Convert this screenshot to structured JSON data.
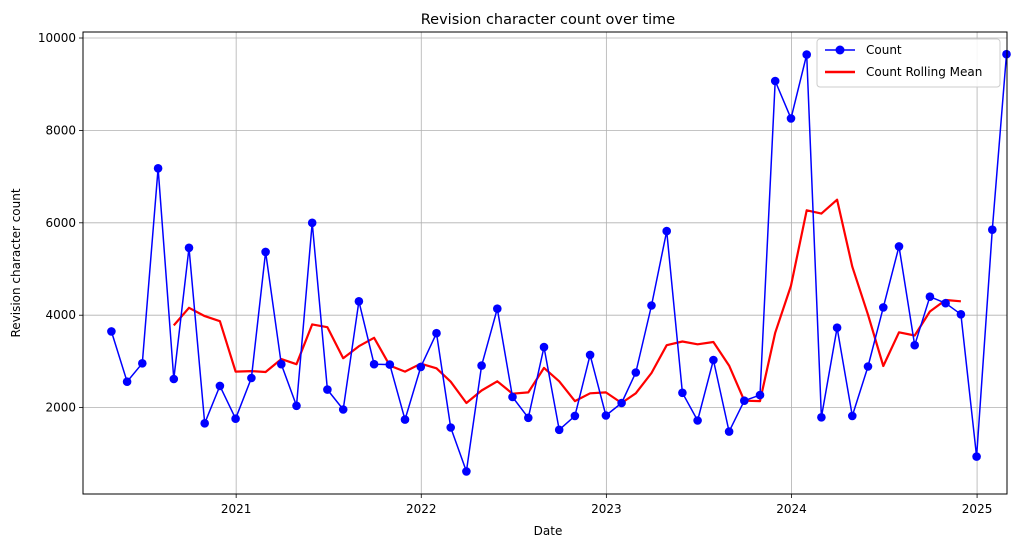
{
  "chart_data": {
    "type": "line",
    "title": "Revision character count over time",
    "xlabel": "Date",
    "ylabel": "Revision character count",
    "x_range": [
      "2020-03-05",
      "2025-03-01"
    ],
    "ylim": [
      130,
      10130
    ],
    "grid": true,
    "legend_position": "top-right",
    "x_ticks": [
      "2021-01-01",
      "2022-01-01",
      "2023-01-01",
      "2024-01-01",
      "2025-01-01"
    ],
    "x_tick_labels": [
      "2021",
      "2022",
      "2023",
      "2024",
      "2025"
    ],
    "y_ticks": [
      2000,
      4000,
      6000,
      8000,
      10000
    ],
    "y_tick_labels": [
      "2000",
      "4000",
      "6000",
      "8000",
      "10000"
    ],
    "colors": {
      "count": "#0000ff",
      "rolling": "#ff0000",
      "grid": "#b0b0b0"
    },
    "series": [
      {
        "name": "Count",
        "style": "line-with-markers",
        "points": [
          [
            "2020-04-30",
            3650
          ],
          [
            "2020-05-31",
            2560
          ],
          [
            "2020-06-30",
            2960
          ],
          [
            "2020-07-31",
            7180
          ],
          [
            "2020-08-31",
            2620
          ],
          [
            "2020-09-30",
            5460
          ],
          [
            "2020-10-31",
            1660
          ],
          [
            "2020-11-30",
            2470
          ],
          [
            "2020-12-31",
            1760
          ],
          [
            "2021-01-31",
            2640
          ],
          [
            "2021-02-28",
            5370
          ],
          [
            "2021-03-31",
            2940
          ],
          [
            "2021-04-30",
            2040
          ],
          [
            "2021-05-31",
            6000
          ],
          [
            "2021-06-30",
            2390
          ],
          [
            "2021-07-31",
            1960
          ],
          [
            "2021-08-31",
            4300
          ],
          [
            "2021-09-30",
            2940
          ],
          [
            "2021-10-31",
            2930
          ],
          [
            "2021-11-30",
            1740
          ],
          [
            "2021-12-31",
            2880
          ],
          [
            "2022-01-31",
            3610
          ],
          [
            "2022-02-28",
            1570
          ],
          [
            "2022-03-31",
            620
          ],
          [
            "2022-04-30",
            2910
          ],
          [
            "2022-05-31",
            4140
          ],
          [
            "2022-06-30",
            2230
          ],
          [
            "2022-07-31",
            1780
          ],
          [
            "2022-08-31",
            3310
          ],
          [
            "2022-09-30",
            1520
          ],
          [
            "2022-10-31",
            1820
          ],
          [
            "2022-11-30",
            3140
          ],
          [
            "2022-12-31",
            1830
          ],
          [
            "2023-01-31",
            2100
          ],
          [
            "2023-02-28",
            2760
          ],
          [
            "2023-03-31",
            4210
          ],
          [
            "2023-04-30",
            5820
          ],
          [
            "2023-05-31",
            2320
          ],
          [
            "2023-06-30",
            1720
          ],
          [
            "2023-07-31",
            3030
          ],
          [
            "2023-08-31",
            1480
          ],
          [
            "2023-09-30",
            2150
          ],
          [
            "2023-10-31",
            2270
          ],
          [
            "2023-11-30",
            9070
          ],
          [
            "2023-12-31",
            8260
          ],
          [
            "2024-01-31",
            9640
          ],
          [
            "2024-02-29",
            1790
          ],
          [
            "2024-03-31",
            3730
          ],
          [
            "2024-04-30",
            1820
          ],
          [
            "2024-05-31",
            2890
          ],
          [
            "2024-06-30",
            4170
          ],
          [
            "2024-07-31",
            5490
          ],
          [
            "2024-08-31",
            3350
          ],
          [
            "2024-09-30",
            4400
          ],
          [
            "2024-10-31",
            4260
          ],
          [
            "2024-11-30",
            4020
          ],
          [
            "2024-12-31",
            940
          ],
          [
            "2025-01-31",
            5850
          ],
          [
            "2025-02-28",
            9650
          ]
        ]
      },
      {
        "name": "Count Rolling Mean",
        "style": "line",
        "points": [
          [
            "2020-08-31",
            3780
          ],
          [
            "2020-09-30",
            4160
          ],
          [
            "2020-10-31",
            3980
          ],
          [
            "2020-11-30",
            3870
          ],
          [
            "2020-12-31",
            2780
          ],
          [
            "2021-01-31",
            2790
          ],
          [
            "2021-02-28",
            2770
          ],
          [
            "2021-03-31",
            3050
          ],
          [
            "2021-04-30",
            2940
          ],
          [
            "2021-05-31",
            3800
          ],
          [
            "2021-06-30",
            3740
          ],
          [
            "2021-07-31",
            3070
          ],
          [
            "2021-08-31",
            3330
          ],
          [
            "2021-09-30",
            3510
          ],
          [
            "2021-10-31",
            2910
          ],
          [
            "2021-11-30",
            2780
          ],
          [
            "2021-12-31",
            2950
          ],
          [
            "2022-01-31",
            2850
          ],
          [
            "2022-02-28",
            2560
          ],
          [
            "2022-03-31",
            2100
          ],
          [
            "2022-04-30",
            2370
          ],
          [
            "2022-05-31",
            2570
          ],
          [
            "2022-06-30",
            2300
          ],
          [
            "2022-07-31",
            2330
          ],
          [
            "2022-08-31",
            2860
          ],
          [
            "2022-09-30",
            2570
          ],
          [
            "2022-10-31",
            2140
          ],
          [
            "2022-11-30",
            2310
          ],
          [
            "2022-12-31",
            2330
          ],
          [
            "2023-01-31",
            2100
          ],
          [
            "2023-02-28",
            2310
          ],
          [
            "2023-03-31",
            2750
          ],
          [
            "2023-04-30",
            3350
          ],
          [
            "2023-05-31",
            3430
          ],
          [
            "2023-06-30",
            3370
          ],
          [
            "2023-07-31",
            3420
          ],
          [
            "2023-08-31",
            2910
          ],
          [
            "2023-09-30",
            2150
          ],
          [
            "2023-10-31",
            2140
          ],
          [
            "2023-11-30",
            3620
          ],
          [
            "2023-12-31",
            4640
          ],
          [
            "2024-01-31",
            6270
          ],
          [
            "2024-02-29",
            6200
          ],
          [
            "2024-03-31",
            6500
          ],
          [
            "2024-04-30",
            5050
          ],
          [
            "2024-05-31",
            4010
          ],
          [
            "2024-06-30",
            2900
          ],
          [
            "2024-07-31",
            3630
          ],
          [
            "2024-08-31",
            3560
          ],
          [
            "2024-09-30",
            4080
          ],
          [
            "2024-10-31",
            4330
          ],
          [
            "2024-11-30",
            4300
          ]
        ]
      }
    ]
  }
}
